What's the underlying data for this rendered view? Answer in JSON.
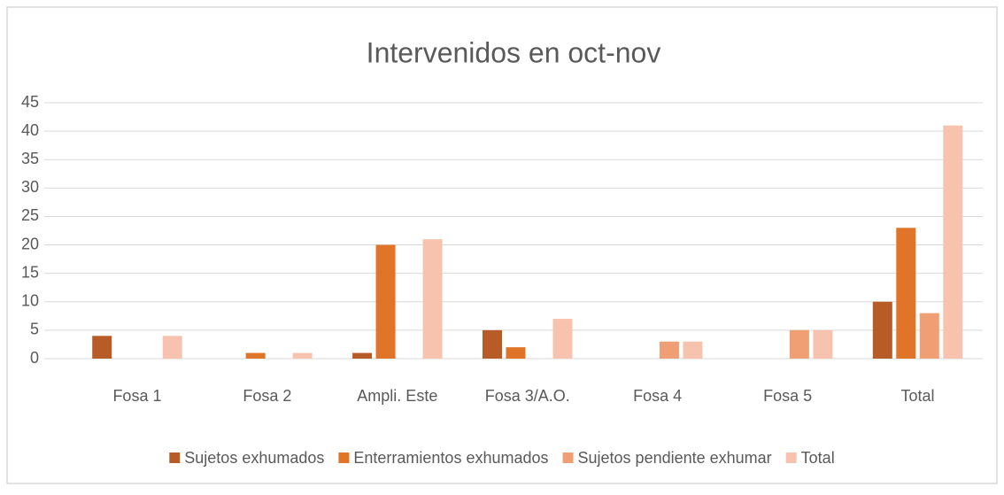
{
  "chart_data": {
    "type": "bar",
    "title": "Intervenidos en oct-nov",
    "categories": [
      "Fosa 1",
      "Fosa 2",
      "Ampli. Este",
      "Fosa 3/A.O.",
      "Fosa 4",
      "Fosa 5",
      "Total"
    ],
    "series": [
      {
        "name": "Sujetos exhumados",
        "color": "#b85c27",
        "values": [
          4,
          0,
          1,
          5,
          0,
          0,
          10
        ]
      },
      {
        "name": "Enterramientos exhumados",
        "color": "#e07428",
        "values": [
          0,
          1,
          20,
          2,
          0,
          0,
          23
        ]
      },
      {
        "name": "Sujetos pendiente exhumar",
        "color": "#f09e74",
        "values": [
          0,
          0,
          0,
          0,
          3,
          5,
          8
        ]
      },
      {
        "name": "Total",
        "color": "#f7c3ae",
        "values": [
          4,
          1,
          21,
          7,
          3,
          5,
          41
        ]
      }
    ],
    "ylim": [
      0,
      45
    ],
    "yticks": [
      0,
      5,
      10,
      15,
      20,
      25,
      30,
      35,
      40,
      45
    ],
    "grid": true,
    "legend": "bottom"
  }
}
